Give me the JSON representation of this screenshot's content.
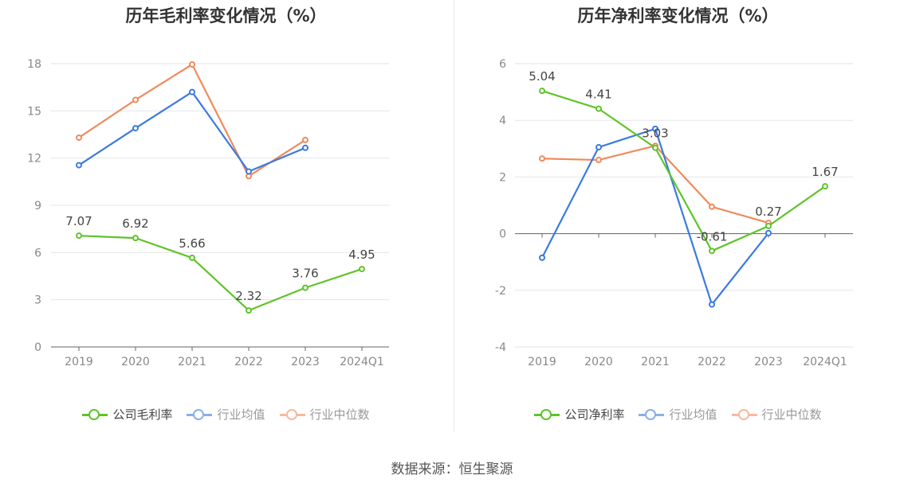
{
  "source": "数据来源：恒生聚源",
  "chart_data": [
    {
      "type": "line",
      "title": "历年毛利率变化情况（%）",
      "categories": [
        "2019",
        "2020",
        "2021",
        "2022",
        "2023",
        "2024Q1"
      ],
      "ylim": [
        0,
        18
      ],
      "yticks": [
        0,
        3,
        6,
        9,
        12,
        15,
        18
      ],
      "series": [
        {
          "name": "公司毛利率",
          "color": "#5ec42a",
          "values": [
            7.07,
            6.92,
            5.66,
            2.32,
            3.76,
            4.95
          ],
          "labels": [
            "7.07",
            "6.92",
            "5.66",
            "2.32",
            "3.76",
            "4.95"
          ]
        },
        {
          "name": "行业均值",
          "color": "#3b7ae0",
          "values": [
            11.55,
            13.9,
            16.2,
            11.15,
            12.65,
            null
          ]
        },
        {
          "name": "行业中位数",
          "color": "#f08a5d",
          "values": [
            13.3,
            15.7,
            17.95,
            10.85,
            13.15,
            null
          ]
        }
      ]
    },
    {
      "type": "line",
      "title": "历年净利率变化情况（%）",
      "categories": [
        "2019",
        "2020",
        "2021",
        "2022",
        "2023",
        "2024Q1"
      ],
      "ylim": [
        -4,
        6
      ],
      "yticks": [
        -4,
        -2,
        0,
        2,
        4,
        6
      ],
      "series": [
        {
          "name": "公司净利率",
          "color": "#5ec42a",
          "values": [
            5.04,
            4.41,
            3.03,
            -0.61,
            0.27,
            1.67
          ],
          "labels": [
            "5.04",
            "4.41",
            "3.03",
            "-0.61",
            "0.27",
            "1.67"
          ]
        },
        {
          "name": "行业均值",
          "color": "#3b7ae0",
          "values": [
            -0.85,
            3.05,
            3.7,
            -2.5,
            0.02,
            null
          ]
        },
        {
          "name": "行业中位数",
          "color": "#f08a5d",
          "values": [
            2.65,
            2.6,
            3.1,
            0.95,
            0.38,
            null
          ]
        }
      ]
    }
  ]
}
